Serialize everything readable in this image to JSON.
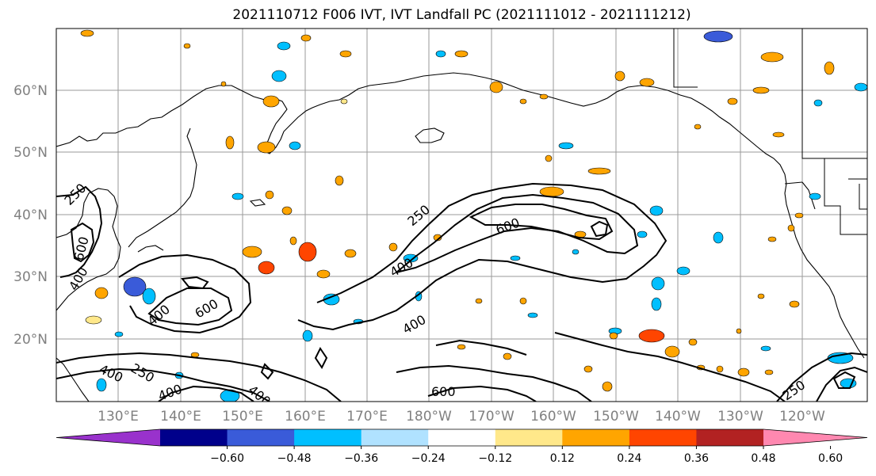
{
  "title": "2021110712 F006 IVT, IVT Landfall PC (2021111012 - 2021111212)",
  "lat_labels": [
    "60°N",
    "50°N",
    "40°N",
    "30°N",
    "20°N"
  ],
  "lon_labels": [
    "130°E",
    "140°E",
    "150°E",
    "160°E",
    "170°E",
    "180°W",
    "170°W",
    "160°W",
    "150°W",
    "140°W",
    "130°W",
    "120°W"
  ],
  "contour_labels": [
    "250",
    "600",
    "400",
    "400",
    "600",
    "250",
    "400",
    "400",
    "600",
    "250",
    "400",
    "600",
    "400",
    "250",
    "400"
  ],
  "colorbar": {
    "colors": [
      "#9932CC",
      "#00008B",
      "#3A5BD9",
      "#00BFFF",
      "#B0E2FF",
      "#FFFFFF",
      "#FFE88A",
      "#FFA500",
      "#FF4500",
      "#B22222",
      "#FF88B0"
    ],
    "ticks": [
      "−0.60",
      "−0.48",
      "−0.36",
      "−0.24",
      "−0.12",
      "0.12",
      "0.24",
      "0.36",
      "0.48",
      "0.60"
    ]
  }
}
